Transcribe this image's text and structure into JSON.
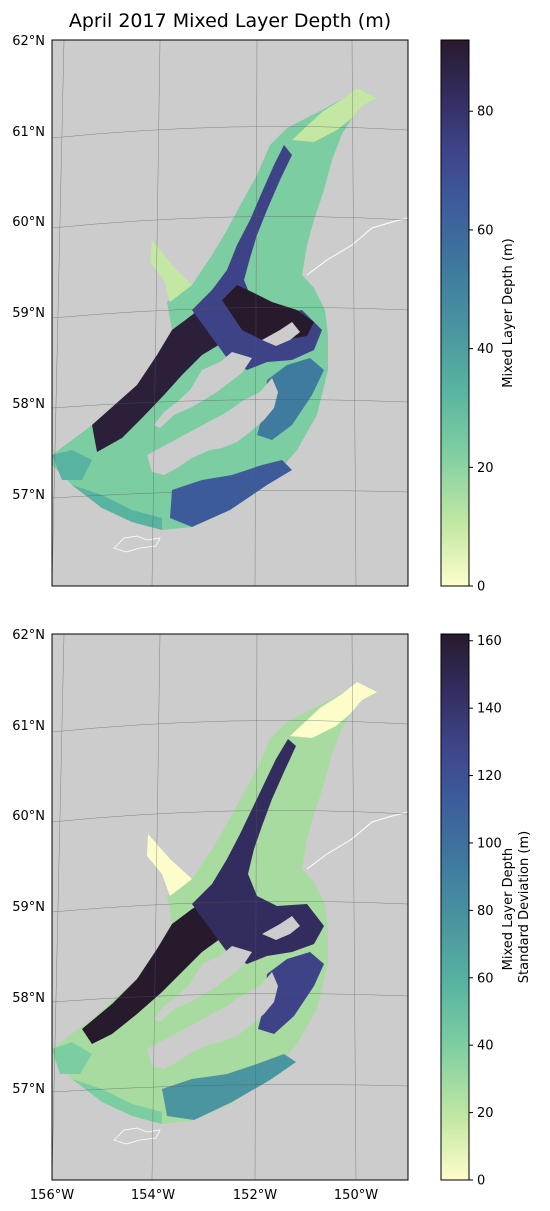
{
  "figure": {
    "title": "April 2017 Mixed Layer Depth (m)"
  },
  "maps": [
    {
      "id": "mld",
      "lat_labels": [
        "62°N",
        "61°N",
        "60°N",
        "59°N",
        "58°N",
        "57°N"
      ],
      "lon_labels": [],
      "colorbar": {
        "label_lines": [
          "Mixed Layer Depth (m)"
        ],
        "range": [
          0,
          92
        ],
        "ticks": [
          "0",
          "20",
          "40",
          "60",
          "80"
        ],
        "tick_values": [
          0,
          20,
          40,
          60,
          80
        ]
      }
    },
    {
      "id": "mld-std",
      "lat_labels": [
        "62°N",
        "61°N",
        "60°N",
        "59°N",
        "58°N",
        "57°N"
      ],
      "lon_labels": [
        "156°W",
        "154°W",
        "152°W",
        "150°W"
      ],
      "colorbar": {
        "label_lines": [
          "Mixed Layer Depth",
          "Standard Deviation (m)"
        ],
        "range": [
          0,
          162
        ],
        "ticks": [
          "0",
          "20",
          "40",
          "60",
          "80",
          "100",
          "120",
          "140",
          "160"
        ],
        "tick_values": [
          0,
          20,
          40,
          60,
          80,
          100,
          120,
          140,
          160
        ]
      }
    }
  ],
  "colors": {
    "land": "#cccccc",
    "ocean_background": "#ffffff",
    "colormap": [
      "#fdfdcc",
      "#c4e8a3",
      "#7ccda2",
      "#58b3a0",
      "#4a95a0",
      "#3f7a9f",
      "#3d5b9b",
      "#3e4388",
      "#332c5e",
      "#281a2d"
    ]
  }
}
